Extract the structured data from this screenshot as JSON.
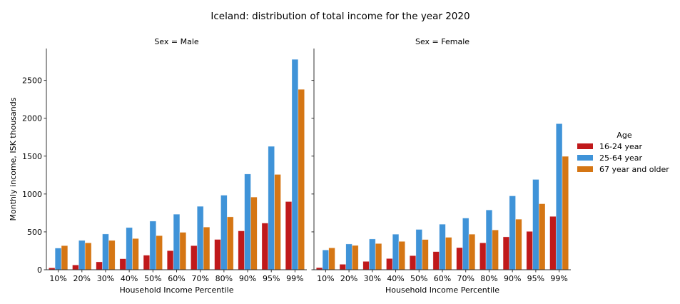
{
  "chart_data": [
    {
      "type": "bar",
      "title": "Iceland: distribution of total income for the year 2020",
      "subtitle": "Sex = Male",
      "xlabel": "Household Income Percentile",
      "ylabel": "Monthly income, ISK thousands",
      "ylim": [
        0,
        2920
      ],
      "yticks": [
        0,
        500,
        1000,
        1500,
        2000,
        2500
      ],
      "grid": false,
      "categories": [
        "10%",
        "20%",
        "30%",
        "40%",
        "50%",
        "60%",
        "70%",
        "80%",
        "90%",
        "95%",
        "99%"
      ],
      "series": [
        {
          "name": "16-24 year",
          "color": "#c0191b",
          "values": [
            25,
            63,
            104,
            145,
            192,
            252,
            318,
            400,
            513,
            616,
            900
          ]
        },
        {
          "name": "25-64 year",
          "color": "#3f93d8",
          "values": [
            286,
            387,
            472,
            557,
            642,
            733,
            837,
            984,
            1264,
            1629,
            2777
          ]
        },
        {
          "name": "67 year and older",
          "color": "#d57614",
          "values": [
            318,
            355,
            387,
            412,
            450,
            494,
            563,
            698,
            959,
            1258,
            2381
          ]
        }
      ]
    },
    {
      "type": "bar",
      "subtitle": "Sex = Female",
      "xlabel": "Household Income Percentile",
      "ylim": [
        0,
        2920
      ],
      "grid": false,
      "categories": [
        "10%",
        "20%",
        "30%",
        "40%",
        "50%",
        "60%",
        "70%",
        "80%",
        "90%",
        "95%",
        "99%"
      ],
      "series": [
        {
          "name": "16-24 year",
          "color": "#c0191b",
          "values": [
            28,
            72,
            110,
            148,
            186,
            239,
            292,
            355,
            434,
            506,
            704
          ]
        },
        {
          "name": "25-64 year",
          "color": "#3f93d8",
          "values": [
            261,
            340,
            406,
            469,
            532,
            601,
            682,
            789,
            975,
            1192,
            1928
          ]
        },
        {
          "name": "67 year and older",
          "color": "#d57614",
          "values": [
            289,
            321,
            346,
            374,
            399,
            428,
            469,
            525,
            667,
            871,
            1497
          ]
        }
      ]
    }
  ],
  "legend": {
    "title": "Age",
    "placement": "right",
    "items": [
      "16-24 year",
      "25-64 year",
      "67 year and older"
    ]
  }
}
